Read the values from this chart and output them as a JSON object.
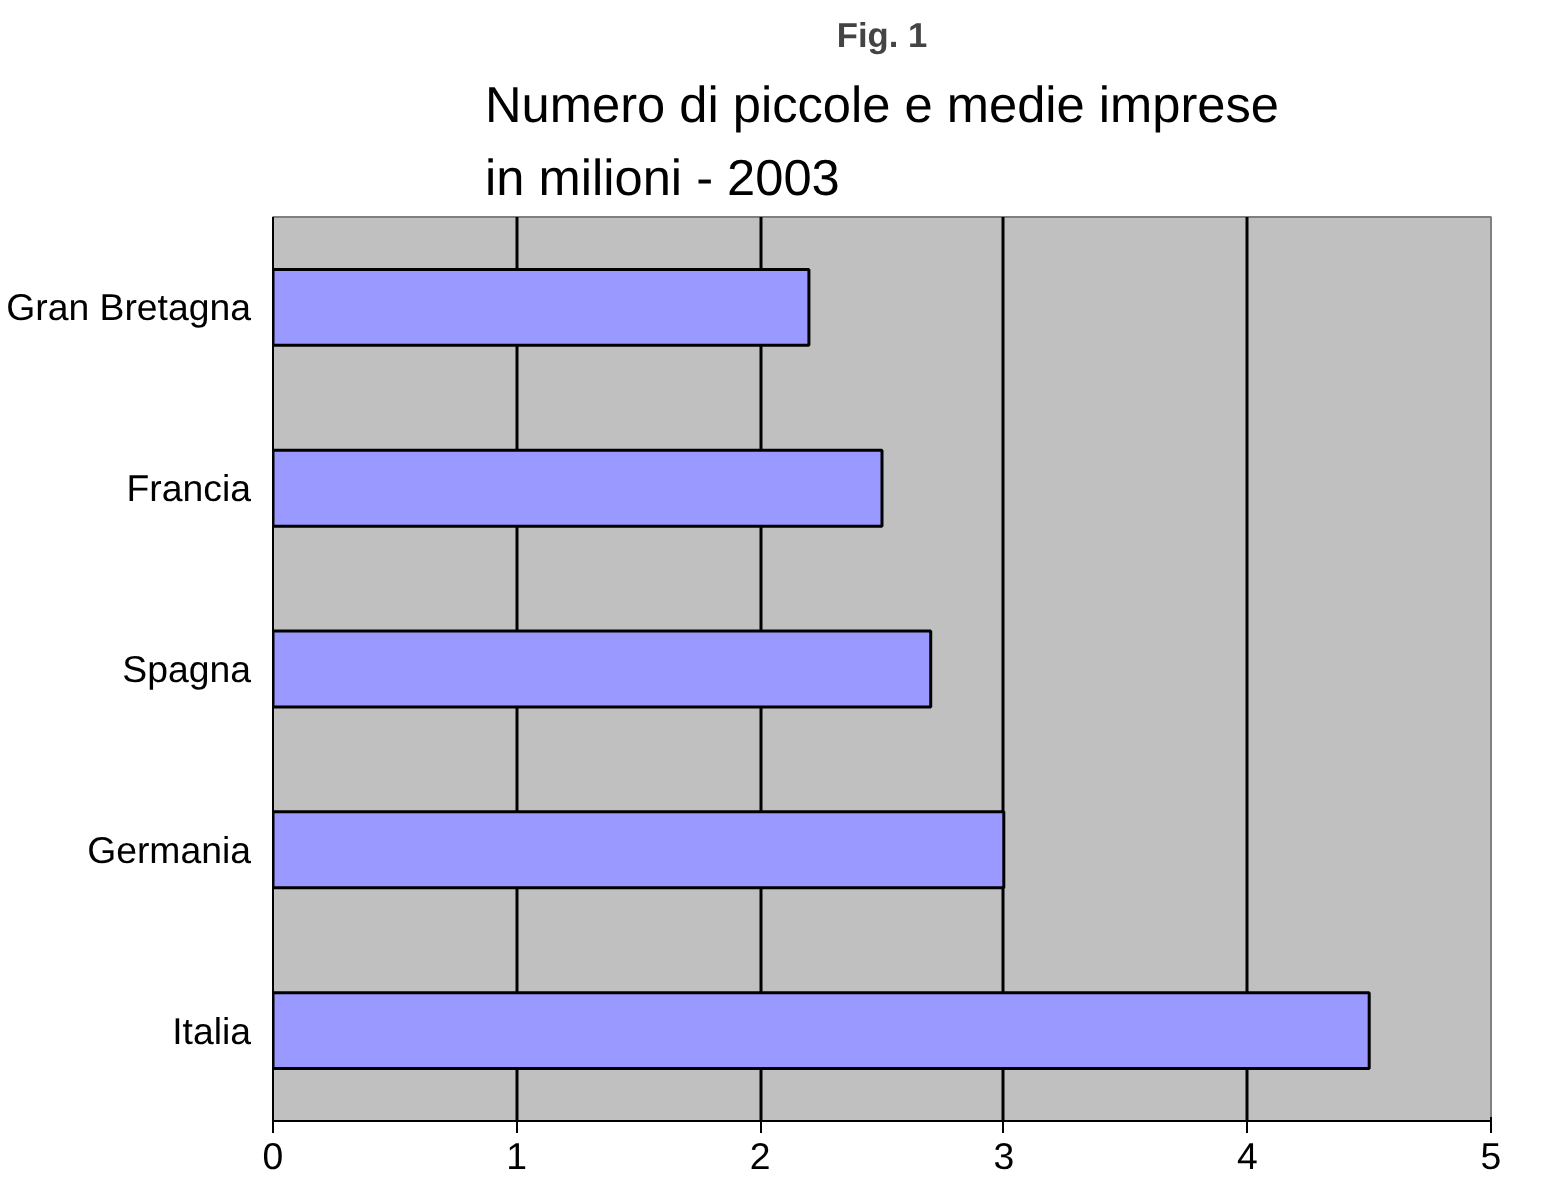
{
  "chart_data": {
    "type": "bar",
    "orientation": "horizontal",
    "title": "Numero di piccole e medie imprese\nin milioni - 2003",
    "annotations": [
      "Fig. 1"
    ],
    "categories": [
      "Gran Bretagna",
      "Francia",
      "Spagna",
      "Germania",
      "Italia"
    ],
    "values": [
      2.2,
      2.5,
      2.7,
      3.0,
      4.5
    ],
    "color": "#9999ff",
    "xlim": [
      0,
      5
    ],
    "xticks": [
      0,
      1,
      2,
      3,
      4,
      5
    ],
    "grid": "x"
  }
}
